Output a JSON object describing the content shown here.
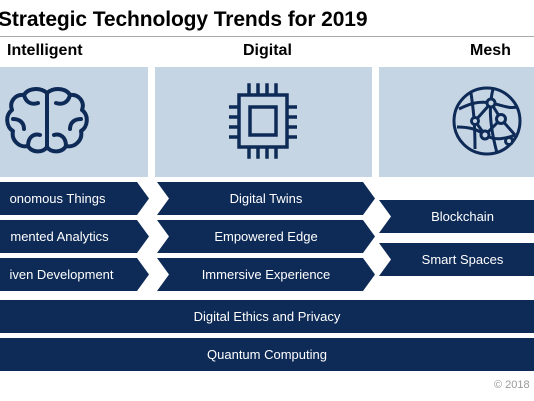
{
  "title": "Strategic Technology Trends for 2019",
  "columns": {
    "intelligent": {
      "heading": "Intelligent",
      "icon": "brain-icon",
      "items": [
        "onomous Things",
        "mented Analytics",
        "iven Development"
      ]
    },
    "digital": {
      "heading": "Digital",
      "icon": "chip-icon",
      "items": [
        "Digital Twins",
        "Empowered Edge",
        "Immersive Experience"
      ]
    },
    "mesh": {
      "heading": "Mesh",
      "icon": "network-globe-icon",
      "items": [
        "Blockchain",
        "Smart Spaces"
      ]
    }
  },
  "bars": [
    "Digital Ethics and Privacy",
    "Quantum Computing"
  ],
  "copyright": "© 2018",
  "colors": {
    "navy": "#0e2b57",
    "panel": "#c6d5e4"
  }
}
